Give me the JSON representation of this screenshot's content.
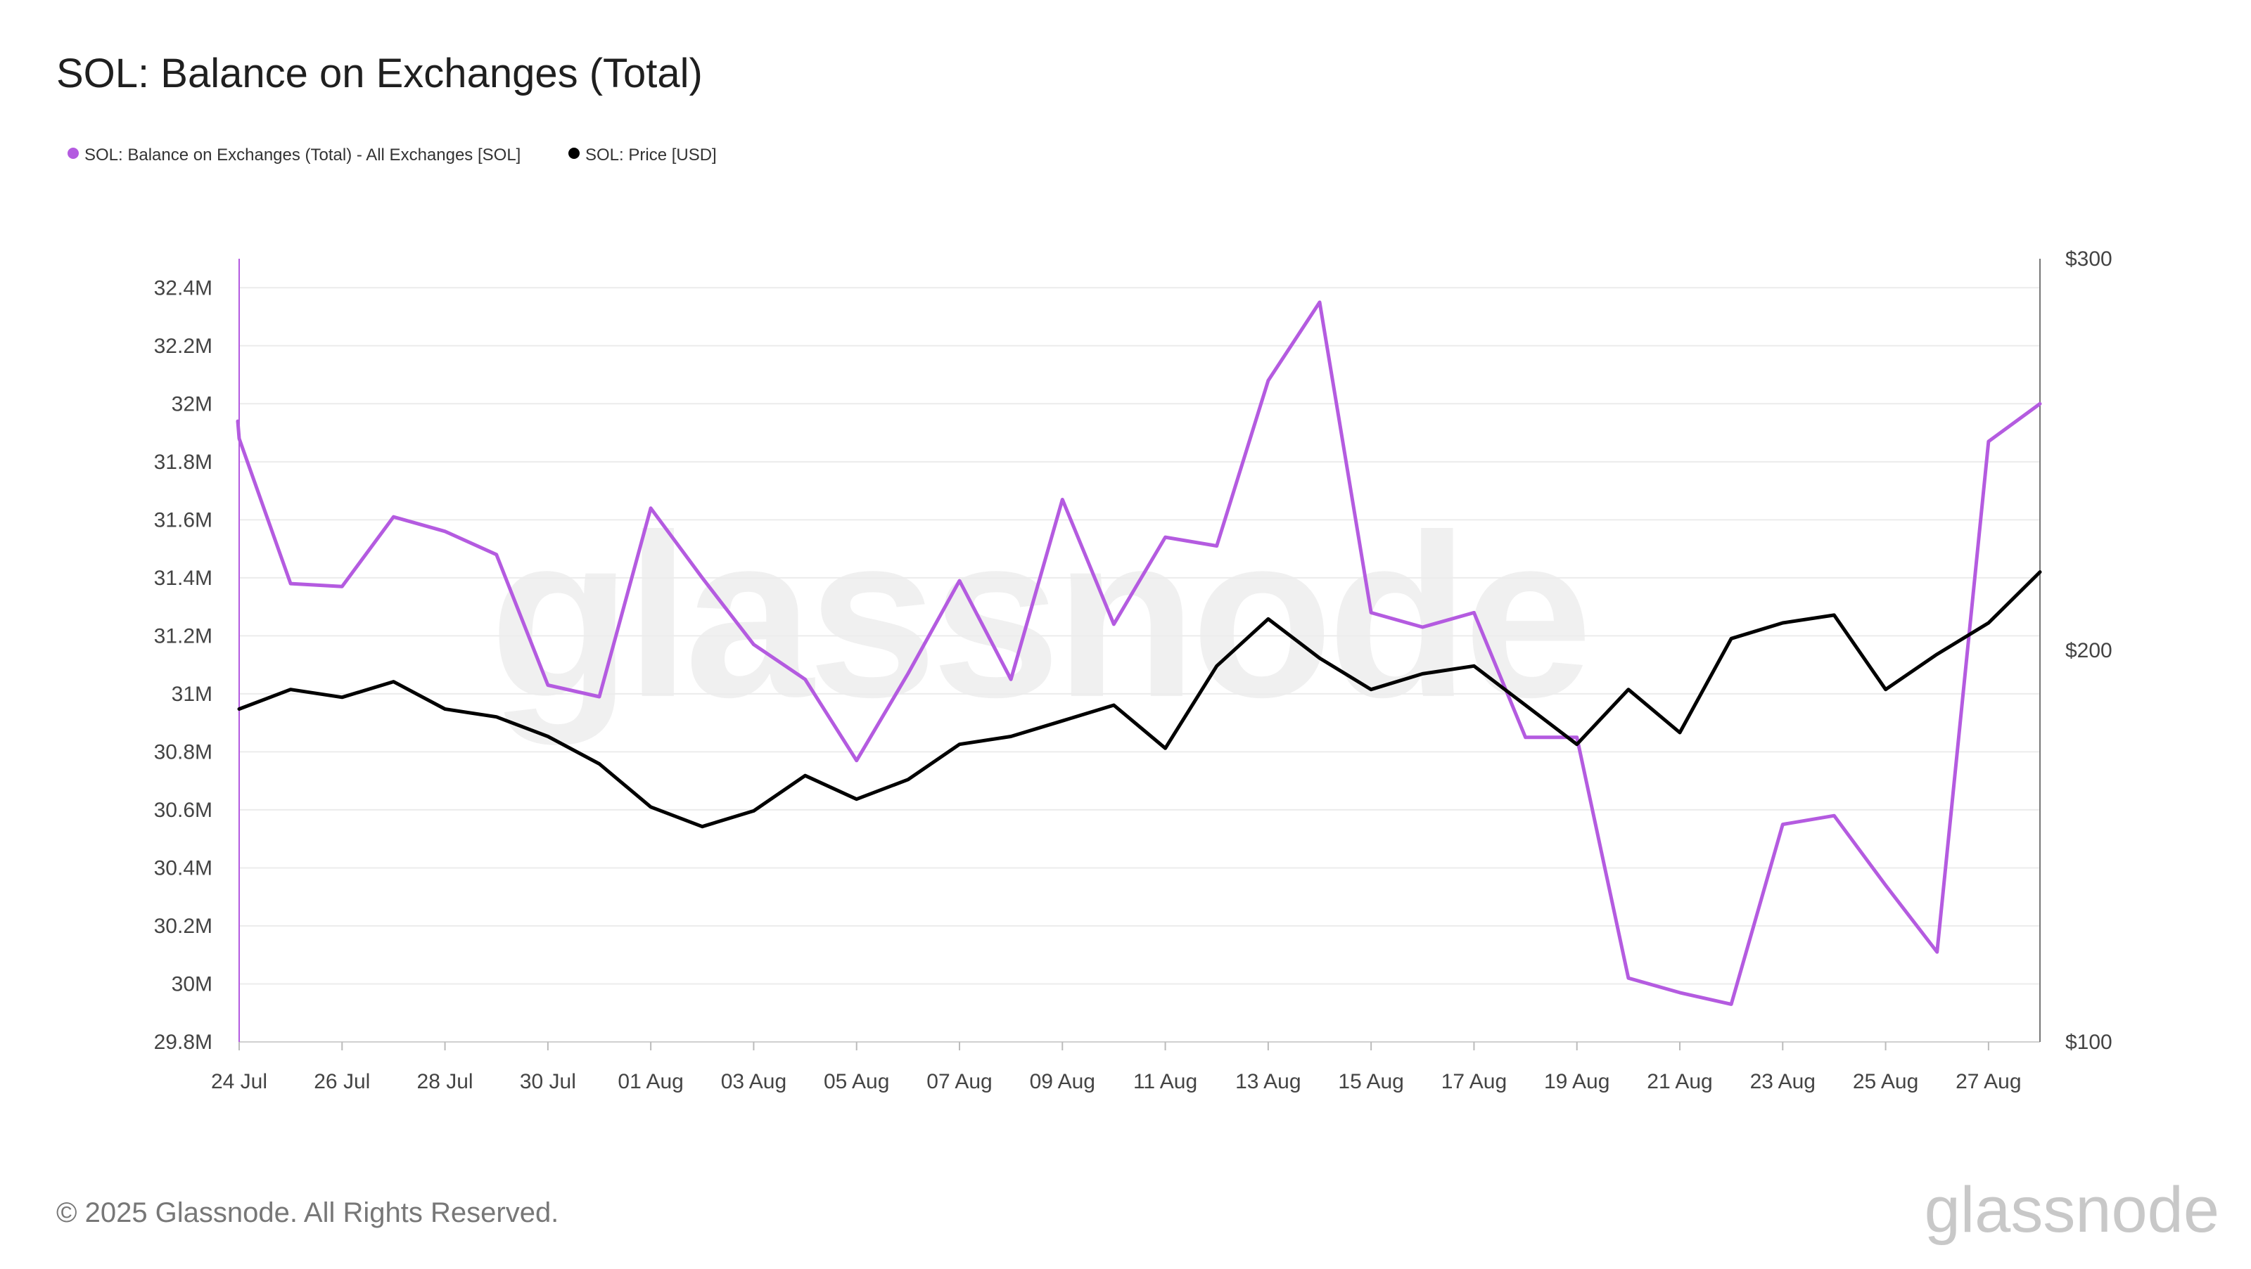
{
  "title": "SOL: Balance on Exchanges (Total)",
  "legend": [
    {
      "label": "SOL: Balance on Exchanges (Total) - All Exchanges [SOL]",
      "color": "#b45be0"
    },
    {
      "label": "SOL: Price [USD]",
      "color": "#000000"
    }
  ],
  "watermark": "glassnode",
  "footer": {
    "copyright": "© 2025 Glassnode. All Rights Reserved.",
    "logo": "glassnode"
  },
  "chart_data": {
    "type": "line",
    "x": [
      "24 Jul",
      "25 Jul",
      "26 Jul",
      "27 Jul",
      "28 Jul",
      "29 Jul",
      "30 Jul",
      "31 Jul",
      "01 Aug",
      "02 Aug",
      "03 Aug",
      "04 Aug",
      "05 Aug",
      "06 Aug",
      "07 Aug",
      "08 Aug",
      "09 Aug",
      "10 Aug",
      "11 Aug",
      "12 Aug",
      "13 Aug",
      "14 Aug",
      "15 Aug",
      "16 Aug",
      "17 Aug",
      "18 Aug",
      "19 Aug",
      "20 Aug",
      "21 Aug",
      "22 Aug",
      "23 Aug",
      "24 Aug",
      "25 Aug",
      "26 Aug",
      "27 Aug",
      "28 Aug"
    ],
    "x_tick_labels": [
      "24 Jul",
      "26 Jul",
      "28 Jul",
      "30 Jul",
      "01 Aug",
      "03 Aug",
      "05 Aug",
      "07 Aug",
      "09 Aug",
      "11 Aug",
      "13 Aug",
      "15 Aug",
      "17 Aug",
      "19 Aug",
      "21 Aug",
      "23 Aug",
      "25 Aug",
      "27 Aug"
    ],
    "series": [
      {
        "name": "SOL: Balance on Exchanges (Total) - All Exchanges [SOL]",
        "axis": "left",
        "color": "#b45be0",
        "start_value": 31.94,
        "values": [
          31.88,
          31.38,
          31.37,
          31.61,
          31.56,
          31.48,
          31.03,
          30.99,
          31.64,
          31.4,
          31.17,
          31.05,
          30.77,
          31.07,
          31.39,
          31.05,
          31.67,
          31.24,
          31.54,
          31.51,
          32.08,
          32.35,
          31.28,
          31.23,
          31.28,
          30.85,
          30.85,
          30.02,
          29.97,
          29.93,
          30.55,
          30.58,
          30.34,
          30.11,
          31.87,
          32.0
        ]
      },
      {
        "name": "SOL: Price [USD]",
        "axis": "right",
        "color": "#000000",
        "values": [
          185,
          190,
          188,
          192,
          185,
          183,
          178,
          171,
          160,
          155,
          159,
          168,
          162,
          167,
          176,
          178,
          182,
          186,
          175,
          196,
          208,
          198,
          190,
          194,
          196,
          186,
          176,
          190,
          179,
          203,
          207,
          209,
          190,
          199,
          207,
          220
        ]
      }
    ],
    "y_left": {
      "ylim": [
        29.8,
        32.5
      ],
      "ticks": [
        29.8,
        30.0,
        30.2,
        30.4,
        30.6,
        30.8,
        31.0,
        31.2,
        31.4,
        31.6,
        31.8,
        32.0,
        32.2,
        32.4
      ],
      "tick_labels": [
        "29.8M",
        "30M",
        "30.2M",
        "30.4M",
        "30.6M",
        "30.8M",
        "31M",
        "31.2M",
        "31.4M",
        "31.6M",
        "31.8M",
        "32M",
        "32.2M",
        "32.4M"
      ]
    },
    "y_right": {
      "ylim": [
        100,
        300
      ],
      "ticks": [
        100,
        200,
        300
      ],
      "tick_labels": [
        "$100",
        "$200",
        "$300"
      ]
    },
    "grid": true,
    "legend_position": "top-left"
  }
}
